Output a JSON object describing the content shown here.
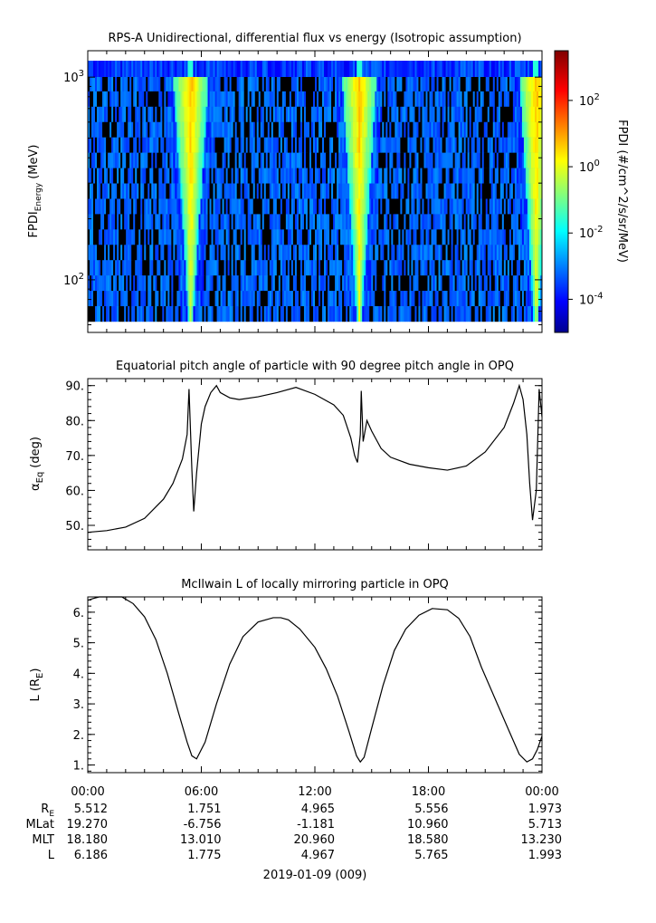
{
  "chart_data": [
    {
      "type": "heatmap",
      "title": "RPS-A Unidirectional, differential flux vs energy (Isotropic assumption)",
      "ylabel_main": "FPDI",
      "ylabel_sub": "Energy",
      "ylabel_unit": "(MeV)",
      "yscale": "log",
      "ylim": [
        55,
        1350
      ],
      "yticks": [
        {
          "value": 100,
          "base": "10",
          "exp": "2"
        },
        {
          "value": 1000,
          "base": "10",
          "exp": "3"
        }
      ],
      "xlim_hours": [
        0,
        24
      ],
      "colorbar": {
        "label": "FPDI (#/cm^2/s/sr/MeV)",
        "scale": "log",
        "range_log10": [
          -5,
          3.5
        ],
        "ticks": [
          {
            "log": 2,
            "base": "10",
            "exp": "2"
          },
          {
            "log": 0,
            "base": "10",
            "exp": "0"
          },
          {
            "log": -2,
            "base": "10",
            "exp": "-2"
          },
          {
            "log": -4,
            "base": "10",
            "exp": "-4"
          }
        ],
        "colormap": "jet"
      },
      "fill_color": "#00b9e6",
      "background_flux_log10": -3.3,
      "belt_crossings_hours": [
        5.45,
        14.35,
        23.7
      ],
      "belt_peak_flux_log10": 0.9
    },
    {
      "type": "line",
      "title": "Equatorial pitch angle of particle with 90 degree pitch angle in OPQ",
      "ylabel_main": "α",
      "ylabel_sub": "Eq",
      "ylabel_unit": "(deg)",
      "ylim": [
        43,
        92
      ],
      "yticks": [
        50,
        60,
        70,
        80,
        90
      ],
      "ytick_labels": [
        "50.",
        "60.",
        "70.",
        "80.",
        "90."
      ],
      "x_hours": [
        0,
        1,
        2,
        3,
        4,
        4.5,
        5.0,
        5.25,
        5.35,
        5.5,
        5.6,
        5.75,
        6.0,
        6.2,
        6.5,
        6.8,
        7.0,
        7.5,
        8.0,
        9.0,
        10.0,
        11.0,
        12.0,
        13.0,
        13.5,
        13.9,
        14.1,
        14.25,
        14.4,
        14.45,
        14.55,
        14.75,
        15.0,
        15.5,
        16.0,
        17.0,
        18.0,
        19.0,
        20.0,
        21.0,
        22.0,
        22.5,
        22.8,
        23.0,
        23.2,
        23.35,
        23.5,
        23.7,
        23.85,
        24.0
      ],
      "y_deg": [
        48.0,
        48.5,
        49.5,
        52.0,
        57.5,
        62.0,
        69.0,
        76.0,
        89.0,
        66.0,
        54.0,
        65.0,
        79.0,
        84.0,
        88.0,
        90.0,
        88.0,
        86.5,
        86.0,
        86.8,
        88.0,
        89.5,
        87.5,
        84.5,
        81.5,
        75.0,
        70.0,
        68.0,
        76.0,
        88.5,
        74.0,
        80.0,
        77.0,
        72.0,
        69.5,
        67.5,
        66.5,
        65.8,
        67.0,
        71.0,
        78.0,
        85.0,
        90.0,
        86.0,
        76.0,
        62.0,
        51.5,
        60.0,
        89.0,
        81.0
      ]
    },
    {
      "type": "line",
      "title": "McIlwain L of locally mirroring particle in OPQ",
      "ylabel_main": "L (R",
      "ylabel_sub": "E",
      "ylabel_unit": ")",
      "ylim": [
        0.75,
        6.5
      ],
      "yticks": [
        1,
        2,
        3,
        4,
        5,
        6
      ],
      "ytick_labels": [
        "1.",
        "2.",
        "3.",
        "4.",
        "5.",
        "6."
      ],
      "x_hours": [
        0,
        0.3,
        0.6,
        1.0,
        1.5,
        1.8,
        2.4,
        3.0,
        3.6,
        4.2,
        4.8,
        5.25,
        5.5,
        5.75,
        6.2,
        6.8,
        7.5,
        8.2,
        9.0,
        9.8,
        10.2,
        10.6,
        11.2,
        12.0,
        12.6,
        13.2,
        13.8,
        14.2,
        14.4,
        14.6,
        15.0,
        15.6,
        16.2,
        16.8,
        17.5,
        18.2,
        19.0,
        19.6,
        20.2,
        20.8,
        21.5,
        22.2,
        22.8,
        23.2,
        23.5,
        23.75,
        24.0
      ],
      "y_L": [
        6.39,
        6.45,
        6.5,
        6.5,
        6.5,
        6.5,
        6.28,
        5.85,
        5.1,
        4.0,
        2.7,
        1.75,
        1.3,
        1.2,
        1.75,
        3.0,
        4.3,
        5.2,
        5.68,
        5.82,
        5.82,
        5.75,
        5.45,
        4.85,
        4.15,
        3.25,
        2.1,
        1.3,
        1.1,
        1.25,
        2.2,
        3.6,
        4.75,
        5.45,
        5.9,
        6.12,
        6.08,
        5.8,
        5.2,
        4.2,
        3.2,
        2.2,
        1.35,
        1.1,
        1.2,
        1.5,
        1.95
      ]
    }
  ],
  "x_axis": {
    "tick_labels": [
      "00:00",
      "06:00",
      "12:00",
      "18:00",
      "00:00"
    ],
    "date_label": "2019-01-09 (009)"
  },
  "ephemeris": {
    "rows": [
      {
        "label": "R",
        "label_sub": "E",
        "values": [
          "5.512",
          "1.751",
          "4.965",
          "5.556",
          "1.973"
        ]
      },
      {
        "label": "MLat",
        "label_sub": "",
        "values": [
          "19.270",
          "-6.756",
          "-1.181",
          "10.960",
          "5.713"
        ]
      },
      {
        "label": "MLT",
        "label_sub": "",
        "values": [
          "18.180",
          "13.010",
          "20.960",
          "18.580",
          "13.230"
        ]
      },
      {
        "label": "L",
        "label_sub": "",
        "values": [
          "6.186",
          "1.775",
          "4.967",
          "5.765",
          "1.993"
        ]
      }
    ]
  }
}
